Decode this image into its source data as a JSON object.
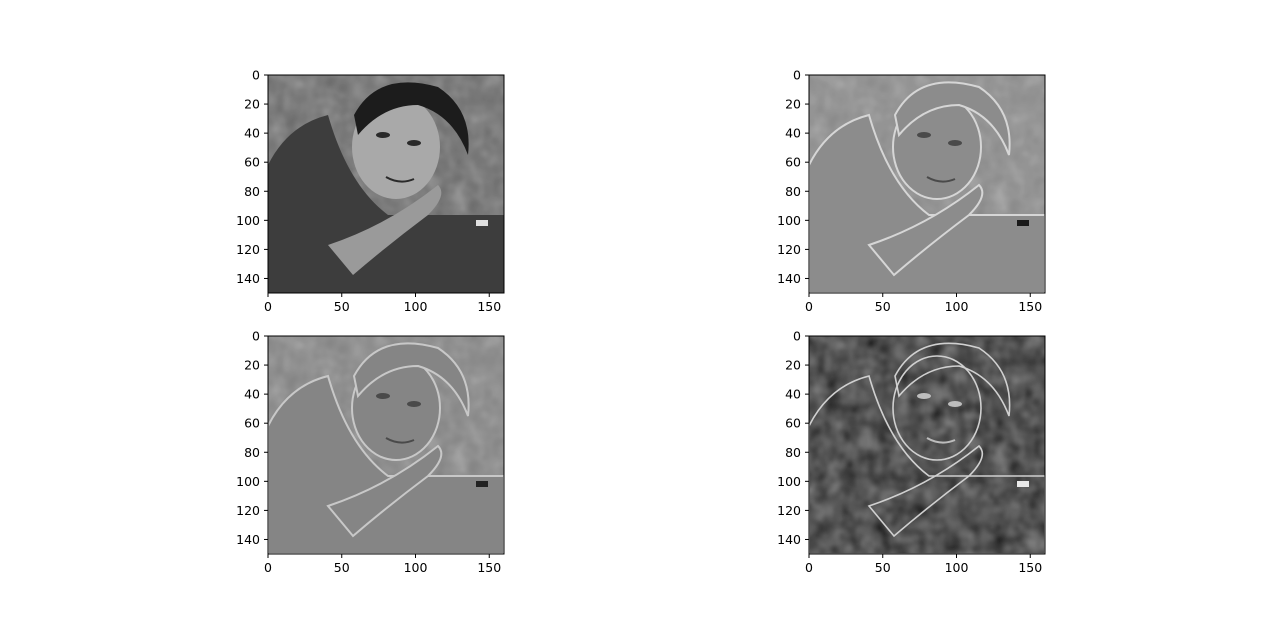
{
  "chart_data": [
    {
      "type": "image",
      "panel": "top-left",
      "content": "grayscale photograph",
      "xlim": [
        0,
        160
      ],
      "ylim": [
        150,
        0
      ],
      "xticks": [
        0,
        50,
        100,
        150
      ],
      "yticks": [
        0,
        20,
        40,
        60,
        80,
        100,
        120,
        140
      ],
      "tone": "grayscale"
    },
    {
      "type": "image",
      "panel": "top-right",
      "content": "horizontal gradient (Sobel x) of photograph",
      "xlim": [
        0,
        160
      ],
      "ylim": [
        150,
        0
      ],
      "xticks": [
        0,
        50,
        100,
        150
      ],
      "yticks": [
        0,
        20,
        40,
        60,
        80,
        100,
        120,
        140
      ],
      "tone": "mid-gray emboss"
    },
    {
      "type": "image",
      "panel": "bottom-left",
      "content": "vertical gradient (Sobel y) of photograph",
      "xlim": [
        0,
        160
      ],
      "ylim": [
        150,
        0
      ],
      "xticks": [
        0,
        50,
        100,
        150
      ],
      "yticks": [
        0,
        20,
        40,
        60,
        80,
        100,
        120,
        140
      ],
      "tone": "mid-gray emboss"
    },
    {
      "type": "image",
      "panel": "bottom-right",
      "content": "gradient magnitude edge map of photograph",
      "xlim": [
        0,
        160
      ],
      "ylim": [
        150,
        0
      ],
      "xticks": [
        0,
        50,
        100,
        150
      ],
      "yticks": [
        0,
        20,
        40,
        60,
        80,
        100,
        120,
        140
      ],
      "tone": "black background with white edges"
    }
  ],
  "colors": {
    "tone_fill": [
      "#5e5e5e",
      "#8c8c8c",
      "#858585",
      "#0a0a0a"
    ]
  }
}
